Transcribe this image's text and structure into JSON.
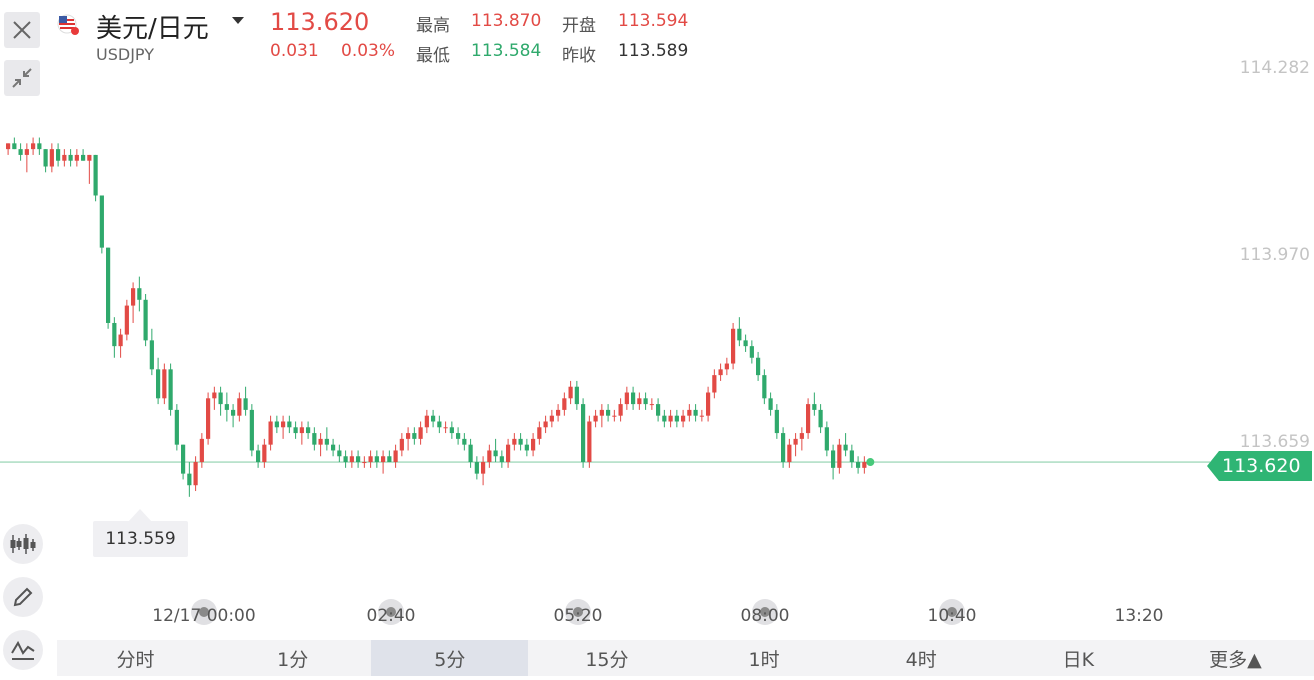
{
  "header": {
    "title": "美元/日元",
    "symbol": "USDJPY",
    "price": "113.620",
    "change": "0.031",
    "change_pct": "0.03%",
    "stats": [
      {
        "label": "最高",
        "value": "113.870",
        "tone": "red"
      },
      {
        "label": "开盘",
        "value": "113.594",
        "tone": "red"
      },
      {
        "label": "最低",
        "value": "113.584",
        "tone": "green"
      },
      {
        "label": "昨收",
        "value": "113.589",
        "tone": "dark"
      }
    ]
  },
  "colors": {
    "up": "#e24a45",
    "down": "#2fa96c",
    "price_line": "#8fd1ae",
    "tag": "#2fb574"
  },
  "chart_data": {
    "type": "candlestick",
    "y_ticks": [
      "114.282",
      "113.970",
      "113.659"
    ],
    "ylim": [
      113.52,
      114.3
    ],
    "last_price": "113.620",
    "low_marker": "113.559",
    "x_ticks": [
      "12/17 00:00",
      "02:40",
      "05:20",
      "08:00",
      "10:40",
      "13:20"
    ],
    "interval": "5分",
    "candles": [
      [
        114.16,
        114.17,
        114.15,
        114.17
      ],
      [
        114.17,
        114.18,
        114.16,
        114.16
      ],
      [
        114.16,
        114.17,
        114.14,
        114.15
      ],
      [
        114.15,
        114.17,
        114.12,
        114.16
      ],
      [
        114.16,
        114.18,
        114.15,
        114.17
      ],
      [
        114.17,
        114.18,
        114.15,
        114.16
      ],
      [
        114.16,
        114.16,
        114.12,
        114.13
      ],
      [
        114.13,
        114.17,
        114.12,
        114.16
      ],
      [
        114.16,
        114.17,
        114.13,
        114.14
      ],
      [
        114.14,
        114.16,
        114.13,
        114.15
      ],
      [
        114.15,
        114.16,
        114.13,
        114.14
      ],
      [
        114.14,
        114.16,
        114.13,
        114.15
      ],
      [
        114.15,
        114.16,
        114.14,
        114.14
      ],
      [
        114.14,
        114.15,
        114.1,
        114.15
      ],
      [
        114.15,
        114.15,
        114.07,
        114.08
      ],
      [
        114.08,
        114.08,
        113.98,
        113.99
      ],
      [
        113.99,
        113.99,
        113.85,
        113.86
      ],
      [
        113.86,
        113.87,
        113.8,
        113.82
      ],
      [
        113.82,
        113.85,
        113.8,
        113.84
      ],
      [
        113.84,
        113.9,
        113.83,
        113.89
      ],
      [
        113.89,
        113.93,
        113.86,
        113.92
      ],
      [
        113.92,
        113.94,
        113.88,
        113.9
      ],
      [
        113.9,
        113.91,
        113.82,
        113.83
      ],
      [
        113.83,
        113.85,
        113.77,
        113.78
      ],
      [
        113.78,
        113.8,
        113.72,
        113.73
      ],
      [
        113.73,
        113.79,
        113.72,
        113.78
      ],
      [
        113.78,
        113.79,
        113.7,
        113.71
      ],
      [
        113.71,
        113.72,
        113.64,
        113.65
      ],
      [
        113.65,
        113.65,
        113.59,
        113.6
      ],
      [
        113.6,
        113.62,
        113.56,
        113.58
      ],
      [
        113.58,
        113.63,
        113.57,
        113.62
      ],
      [
        113.62,
        113.67,
        113.61,
        113.66
      ],
      [
        113.66,
        113.74,
        113.65,
        113.73
      ],
      [
        113.73,
        113.75,
        113.71,
        113.74
      ],
      [
        113.74,
        113.75,
        113.7,
        113.72
      ],
      [
        113.72,
        113.74,
        113.69,
        113.71
      ],
      [
        113.71,
        113.72,
        113.68,
        113.7
      ],
      [
        113.7,
        113.74,
        113.69,
        113.73
      ],
      [
        113.73,
        113.75,
        113.7,
        113.71
      ],
      [
        113.71,
        113.72,
        113.63,
        113.64
      ],
      [
        113.64,
        113.65,
        113.61,
        113.62
      ],
      [
        113.62,
        113.66,
        113.61,
        113.65
      ],
      [
        113.65,
        113.7,
        113.64,
        113.69
      ],
      [
        113.69,
        113.7,
        113.67,
        113.68
      ],
      [
        113.68,
        113.7,
        113.66,
        113.69
      ],
      [
        113.69,
        113.7,
        113.67,
        113.68
      ],
      [
        113.68,
        113.69,
        113.66,
        113.67
      ],
      [
        113.67,
        113.69,
        113.65,
        113.68
      ],
      [
        113.68,
        113.69,
        113.66,
        113.67
      ],
      [
        113.67,
        113.68,
        113.64,
        113.65
      ],
      [
        113.65,
        113.67,
        113.63,
        113.66
      ],
      [
        113.66,
        113.68,
        113.64,
        113.65
      ],
      [
        113.65,
        113.66,
        113.63,
        113.64
      ],
      [
        113.64,
        113.65,
        113.62,
        113.63
      ],
      [
        113.63,
        113.64,
        113.61,
        113.62
      ],
      [
        113.62,
        113.64,
        113.61,
        113.63
      ],
      [
        113.63,
        113.64,
        113.61,
        113.62
      ],
      [
        113.62,
        113.63,
        113.61,
        113.62
      ],
      [
        113.62,
        113.64,
        113.61,
        113.63
      ],
      [
        113.63,
        113.64,
        113.61,
        113.62
      ],
      [
        113.62,
        113.64,
        113.6,
        113.63
      ],
      [
        113.63,
        113.64,
        113.62,
        113.62
      ],
      [
        113.62,
        113.65,
        113.61,
        113.64
      ],
      [
        113.64,
        113.67,
        113.63,
        113.66
      ],
      [
        113.66,
        113.68,
        113.64,
        113.67
      ],
      [
        113.67,
        113.68,
        113.65,
        113.66
      ],
      [
        113.66,
        113.69,
        113.65,
        113.68
      ],
      [
        113.68,
        113.71,
        113.67,
        113.7
      ],
      [
        113.7,
        113.71,
        113.68,
        113.69
      ],
      [
        113.69,
        113.7,
        113.67,
        113.68
      ],
      [
        113.68,
        113.69,
        113.67,
        113.68
      ],
      [
        113.68,
        113.69,
        113.66,
        113.67
      ],
      [
        113.67,
        113.68,
        113.65,
        113.66
      ],
      [
        113.66,
        113.67,
        113.64,
        113.65
      ],
      [
        113.65,
        113.66,
        113.61,
        113.62
      ],
      [
        113.62,
        113.63,
        113.59,
        113.6
      ],
      [
        113.6,
        113.63,
        113.58,
        113.62
      ],
      [
        113.62,
        113.65,
        113.61,
        113.64
      ],
      [
        113.64,
        113.66,
        113.62,
        113.63
      ],
      [
        113.63,
        113.64,
        113.61,
        113.62
      ],
      [
        113.62,
        113.66,
        113.61,
        113.65
      ],
      [
        113.65,
        113.67,
        113.64,
        113.66
      ],
      [
        113.66,
        113.67,
        113.64,
        113.65
      ],
      [
        113.65,
        113.66,
        113.63,
        113.64
      ],
      [
        113.64,
        113.67,
        113.63,
        113.66
      ],
      [
        113.66,
        113.69,
        113.65,
        113.68
      ],
      [
        113.68,
        113.7,
        113.67,
        113.69
      ],
      [
        113.69,
        113.71,
        113.68,
        113.7
      ],
      [
        113.7,
        113.72,
        113.69,
        113.71
      ],
      [
        113.71,
        113.74,
        113.7,
        113.73
      ],
      [
        113.73,
        113.76,
        113.72,
        113.75
      ],
      [
        113.75,
        113.76,
        113.71,
        113.72
      ],
      [
        113.72,
        113.73,
        113.61,
        113.62
      ],
      [
        113.62,
        113.7,
        113.61,
        113.69
      ],
      [
        113.69,
        113.71,
        113.68,
        113.7
      ],
      [
        113.7,
        113.72,
        113.68,
        113.71
      ],
      [
        113.71,
        113.72,
        113.69,
        113.7
      ],
      [
        113.7,
        113.71,
        113.69,
        113.7
      ],
      [
        113.7,
        113.73,
        113.69,
        113.72
      ],
      [
        113.72,
        113.75,
        113.71,
        113.74
      ],
      [
        113.74,
        113.75,
        113.71,
        113.72
      ],
      [
        113.72,
        113.74,
        113.71,
        113.73
      ],
      [
        113.73,
        113.74,
        113.71,
        113.72
      ],
      [
        113.72,
        113.73,
        113.71,
        113.72
      ],
      [
        113.72,
        113.73,
        113.69,
        113.7
      ],
      [
        113.7,
        113.71,
        113.68,
        113.69
      ],
      [
        113.69,
        113.71,
        113.68,
        113.7
      ],
      [
        113.7,
        113.71,
        113.68,
        113.69
      ],
      [
        113.69,
        113.71,
        113.68,
        113.7
      ],
      [
        113.7,
        113.72,
        113.69,
        113.71
      ],
      [
        113.71,
        113.72,
        113.69,
        113.7
      ],
      [
        113.7,
        113.71,
        113.69,
        113.7
      ],
      [
        113.7,
        113.75,
        113.69,
        113.74
      ],
      [
        113.74,
        113.78,
        113.73,
        113.77
      ],
      [
        113.77,
        113.79,
        113.76,
        113.78
      ],
      [
        113.78,
        113.8,
        113.77,
        113.79
      ],
      [
        113.79,
        113.86,
        113.78,
        113.85
      ],
      [
        113.85,
        113.87,
        113.82,
        113.83
      ],
      [
        113.83,
        113.84,
        113.81,
        113.82
      ],
      [
        113.82,
        113.83,
        113.79,
        113.8
      ],
      [
        113.8,
        113.81,
        113.76,
        113.77
      ],
      [
        113.77,
        113.78,
        113.72,
        113.73
      ],
      [
        113.73,
        113.74,
        113.7,
        113.71
      ],
      [
        113.71,
        113.72,
        113.66,
        113.67
      ],
      [
        113.67,
        113.68,
        113.61,
        113.62
      ],
      [
        113.62,
        113.66,
        113.61,
        113.65
      ],
      [
        113.65,
        113.67,
        113.63,
        113.66
      ],
      [
        113.66,
        113.68,
        113.64,
        113.67
      ],
      [
        113.67,
        113.73,
        113.66,
        113.72
      ],
      [
        113.72,
        113.74,
        113.7,
        113.71
      ],
      [
        113.71,
        113.72,
        113.67,
        113.68
      ],
      [
        113.68,
        113.69,
        113.63,
        113.64
      ],
      [
        113.64,
        113.65,
        113.59,
        113.61
      ],
      [
        113.61,
        113.66,
        113.6,
        113.65
      ],
      [
        113.65,
        113.67,
        113.63,
        113.64
      ],
      [
        113.64,
        113.65,
        113.61,
        113.62
      ],
      [
        113.62,
        113.63,
        113.6,
        113.61
      ],
      [
        113.61,
        113.63,
        113.6,
        113.62
      ]
    ]
  },
  "tools": [
    "candle-chart",
    "draw",
    "indicator"
  ],
  "tabs": [
    {
      "label": "分时",
      "active": false
    },
    {
      "label": "1分",
      "active": false
    },
    {
      "label": "5分",
      "active": true
    },
    {
      "label": "15分",
      "active": false
    },
    {
      "label": "1时",
      "active": false
    },
    {
      "label": "4时",
      "active": false
    },
    {
      "label": "日K",
      "active": false
    },
    {
      "label": "更多▲",
      "active": false
    }
  ]
}
